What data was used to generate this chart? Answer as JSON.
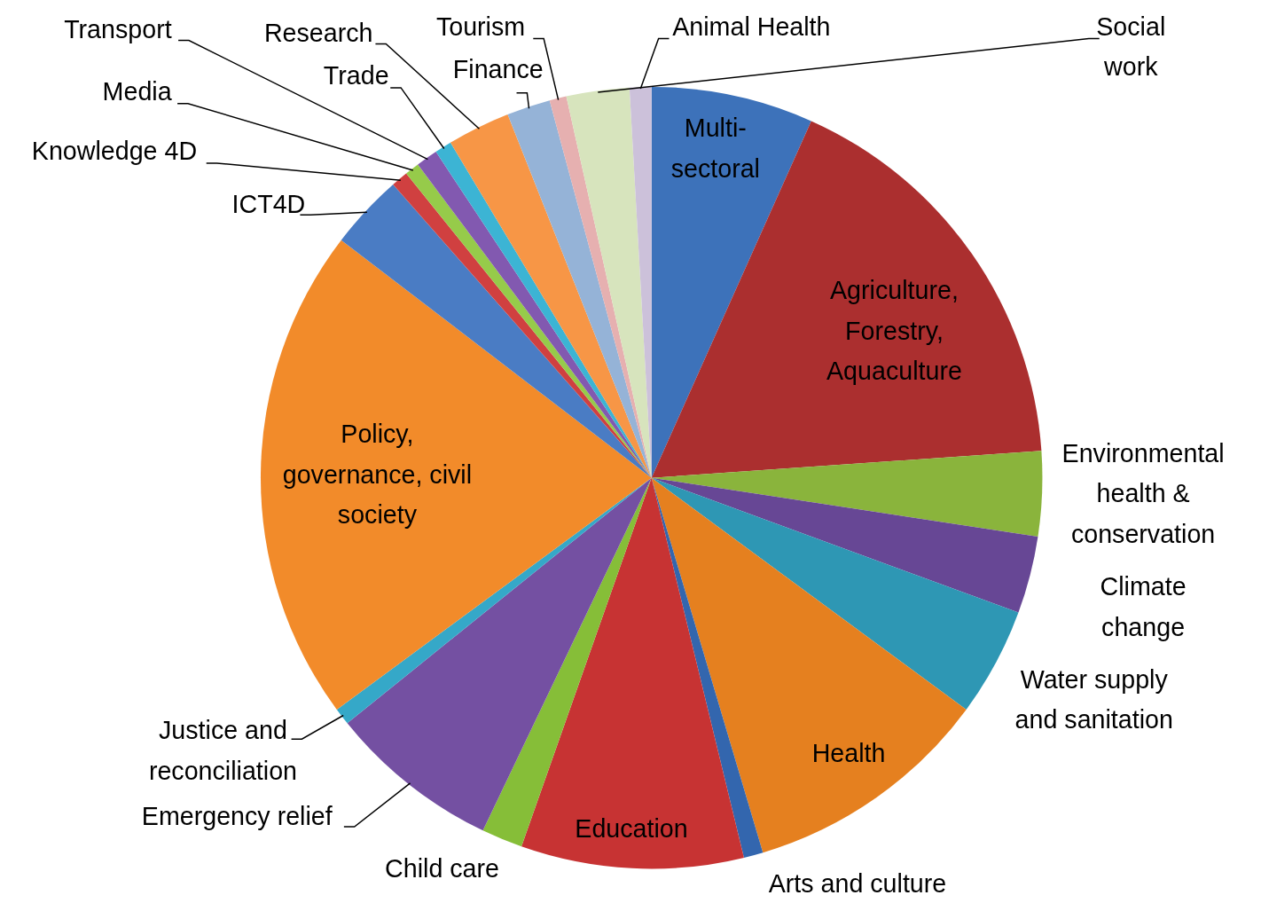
{
  "chart_data": {
    "type": "pie",
    "categories": [
      "Multi-sectoral",
      "Agriculture, Forestry, Aquaculture",
      "Environmental health & conservation",
      "Climate change",
      "Water supply and sanitation",
      "Health",
      "Arts and culture",
      "Education",
      "Child care",
      "Emergency relief",
      "Justice and reconciliation",
      "Policy, governance, civil society",
      "ICT4D",
      "Knowledge 4D",
      "Media",
      "Transport",
      "Trade",
      "Research",
      "Finance",
      "Tourism",
      "Social work",
      "Animal Health"
    ],
    "values": [
      6.7,
      17.2,
      3.5,
      3.2,
      4.5,
      10.3,
      0.8,
      9.2,
      1.7,
      7.1,
      0.7,
      20.5,
      3.1,
      0.7,
      0.6,
      0.9,
      0.7,
      2.6,
      1.8,
      0.7,
      2.6,
      0.9
    ],
    "colors": [
      "#3d72ba",
      "#ab2f2f",
      "#8ab43c",
      "#674795",
      "#2e97b4",
      "#e5801f",
      "#3366ae",
      "#c73333",
      "#86be38",
      "#7450a2",
      "#35a8c8",
      "#f28b2a",
      "#4a7cc4",
      "#d04040",
      "#96cb4a",
      "#8259b0",
      "#3cb4d4",
      "#f79646",
      "#95b3d7",
      "#e6b0b0",
      "#d7e4bd",
      "#ccc1da"
    ]
  }
}
